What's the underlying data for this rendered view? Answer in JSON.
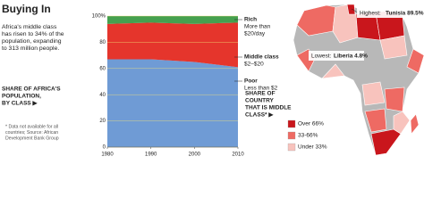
{
  "header": {
    "title": "Buying In",
    "text": [
      "Africa's middle class",
      "has risen to 34% of the",
      "population, expanding",
      "to 313 million people."
    ]
  },
  "chart_caption": [
    "SHARE OF AFRICA'S",
    "POPULATION,",
    "BY CLASS ▶"
  ],
  "note": [
    "* Data not available for all",
    "countries; Source: African",
    "Development Bank Group"
  ],
  "chart_data": {
    "type": "stacked-area",
    "x": [
      1980,
      1990,
      2000,
      2010
    ],
    "xlim": [
      1980,
      2010
    ],
    "xticks": [
      1980,
      1990,
      2000,
      2010
    ],
    "ylim": [
      0,
      100
    ],
    "yticks": [
      0,
      20,
      40,
      60,
      80,
      {
        "value": 100,
        "label": "100%"
      }
    ],
    "grid": true,
    "series": [
      {
        "name": "Poor",
        "description": [
          "Less than $2"
        ],
        "color": "#6f9bd5",
        "values": [
          67,
          67,
          65,
          61
        ]
      },
      {
        "name": "Middle class",
        "description": [
          "$2–$20"
        ],
        "color": "#e5352c",
        "values": [
          27,
          28,
          29,
          34
        ]
      },
      {
        "name": "Rich",
        "description": [
          "More than",
          "$20/day"
        ],
        "color": "#45a04f",
        "values": [
          6,
          5,
          6,
          5
        ]
      }
    ]
  },
  "map": {
    "title": [
      "SHARE OF",
      "COUNTRY",
      "THAT IS MIDDLE",
      "CLASS* ▶"
    ],
    "highest": {
      "label": "Highest:",
      "text": "Tunisia 89.5%"
    },
    "lowest": {
      "label": "Lowest:",
      "text": "Liberia 4.8%"
    },
    "legend": [
      {
        "label": "Over 66%",
        "color": "#c9161c"
      },
      {
        "label": "33-66%",
        "color": "#ee6a63"
      },
      {
        "label": "Under 33%",
        "color": "#f8c3bd"
      }
    ]
  }
}
